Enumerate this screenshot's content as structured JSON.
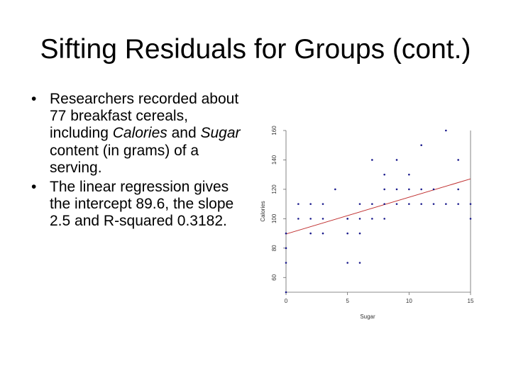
{
  "slide": {
    "title": "Sifting Residuals for Groups (cont.)",
    "bullets": [
      {
        "parts": [
          {
            "text": "Researchers recorded about 77 breakfast cereals, including ",
            "italic": false
          },
          {
            "text": "Calories",
            "italic": true
          },
          {
            "text": " and ",
            "italic": false
          },
          {
            "text": "Sugar",
            "italic": true
          },
          {
            "text": " content (in grams) of a serving.",
            "italic": false
          }
        ]
      },
      {
        "parts": [
          {
            "text": "The linear regression gives the intercept 89.6, the slope 2.5 and R-squared 0.3182.",
            "italic": false
          }
        ]
      }
    ]
  },
  "chart_data": {
    "type": "scatter",
    "xlabel": "Sugar",
    "ylabel": "Calories",
    "xlim": [
      0,
      15
    ],
    "ylim": [
      50,
      160
    ],
    "xticks": [
      0,
      5,
      10,
      15
    ],
    "yticks": [
      60,
      80,
      100,
      120,
      140,
      160
    ],
    "point_color": "#1a1a8c",
    "line_color": "#c03030",
    "regression": {
      "intercept": 89.6,
      "slope": 2.5
    },
    "points": [
      [
        0,
        50
      ],
      [
        0,
        70
      ],
      [
        0,
        80
      ],
      [
        0,
        90
      ],
      [
        1,
        100
      ],
      [
        1,
        110
      ],
      [
        2,
        90
      ],
      [
        2,
        100
      ],
      [
        2,
        110
      ],
      [
        3,
        90
      ],
      [
        3,
        100
      ],
      [
        3,
        110
      ],
      [
        4,
        120
      ],
      [
        5,
        70
      ],
      [
        5,
        90
      ],
      [
        5,
        100
      ],
      [
        5,
        100
      ],
      [
        6,
        70
      ],
      [
        6,
        90
      ],
      [
        6,
        100
      ],
      [
        6,
        110
      ],
      [
        7,
        100
      ],
      [
        7,
        110
      ],
      [
        7,
        140
      ],
      [
        8,
        100
      ],
      [
        8,
        110
      ],
      [
        8,
        120
      ],
      [
        8,
        130
      ],
      [
        9,
        110
      ],
      [
        9,
        120
      ],
      [
        9,
        140
      ],
      [
        10,
        110
      ],
      [
        10,
        120
      ],
      [
        10,
        130
      ],
      [
        11,
        110
      ],
      [
        11,
        120
      ],
      [
        11,
        150
      ],
      [
        12,
        110
      ],
      [
        12,
        120
      ],
      [
        13,
        110
      ],
      [
        13,
        160
      ],
      [
        14,
        110
      ],
      [
        14,
        120
      ],
      [
        14,
        140
      ],
      [
        15,
        100
      ],
      [
        15,
        110
      ]
    ]
  }
}
